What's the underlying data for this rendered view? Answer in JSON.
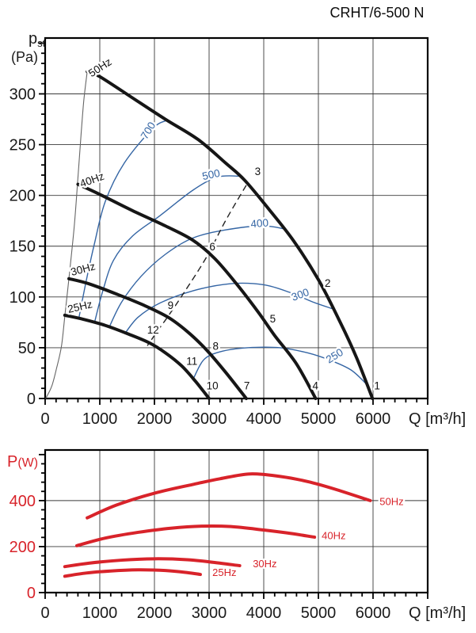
{
  "title": "CRHT/6-500 N",
  "colors": {
    "fan_curve": "#161616",
    "contour": "#3465a4",
    "power_curve": "#d8232a",
    "axis": "#000000",
    "grid": "#3a3a3a",
    "text": "#1a1a1a"
  },
  "chart_data": [
    {
      "id": "pressure",
      "type": "line",
      "title": "",
      "xlabel": "Q [m³/h]",
      "ylabel": {
        "main": "p",
        "sub": "st",
        "unit": "(Pa)"
      },
      "xlim": [
        0,
        7000
      ],
      "ylim": [
        0,
        355
      ],
      "xticks": [
        0,
        1000,
        2000,
        3000,
        4000,
        5000,
        6000
      ],
      "yticks": [
        0,
        50,
        100,
        150,
        200,
        250,
        300
      ],
      "x_minor_step": 200,
      "y_minor_step": 10,
      "x_major_step": 1000,
      "y_major_step": 50,
      "grid": true,
      "series": [
        {
          "name": "50Hz",
          "points": [
            [
              770,
              322
            ],
            [
              1000,
              317
            ],
            [
              1600,
              296
            ],
            [
              2200,
              275
            ],
            [
              2800,
              255
            ],
            [
              3300,
              232
            ],
            [
              3650,
              215
            ],
            [
              4100,
              186
            ],
            [
              4550,
              155
            ],
            [
              5000,
              117
            ],
            [
              5400,
              75
            ],
            [
              5700,
              40
            ],
            [
              5990,
              0
            ]
          ]
        },
        {
          "name": "40Hz",
          "points": [
            [
              600,
              211
            ],
            [
              1000,
              201
            ],
            [
              1600,
              185
            ],
            [
              2200,
              170
            ],
            [
              2700,
              156
            ],
            [
              3100,
              138
            ],
            [
              3500,
              113
            ],
            [
              3900,
              85
            ],
            [
              4200,
              62
            ],
            [
              4600,
              34
            ],
            [
              4950,
              0
            ]
          ]
        },
        {
          "name": "30Hz",
          "points": [
            [
              435,
              118
            ],
            [
              800,
              113
            ],
            [
              1300,
              103
            ],
            [
              1800,
              92
            ],
            [
              2250,
              80
            ],
            [
              2600,
              66
            ],
            [
              2950,
              48
            ],
            [
              3300,
              26
            ],
            [
              3680,
              0
            ]
          ]
        },
        {
          "name": "25Hz",
          "points": [
            [
              360,
              82
            ],
            [
              700,
              78
            ],
            [
              1100,
              72
            ],
            [
              1500,
              64
            ],
            [
              1900,
              55
            ],
            [
              2200,
              45
            ],
            [
              2500,
              32
            ],
            [
              2750,
              17
            ],
            [
              3000,
              0
            ]
          ]
        }
      ],
      "curve_labels": [
        {
          "text": "50Hz",
          "q": 1040,
          "p": 323,
          "rot": -33
        },
        {
          "text": "40Hz",
          "q": 880,
          "p": 212,
          "rot": -20
        },
        {
          "text": "30Hz",
          "q": 710,
          "p": 124,
          "rot": -15
        },
        {
          "text": "25Hz",
          "q": 652,
          "p": 87,
          "rot": -13
        }
      ],
      "contours": [
        {
          "label": "700",
          "points": [
            [
              620,
              80
            ],
            [
              760,
              118
            ],
            [
              900,
              152
            ],
            [
              1100,
              194
            ],
            [
              1450,
              232
            ],
            [
              1970,
              266
            ],
            [
              2230,
              274
            ]
          ],
          "label_q": 1940,
          "label_p": 262,
          "label_rot": -58
        },
        {
          "label": "500",
          "points": [
            [
              900,
              74
            ],
            [
              1050,
              105
            ],
            [
              1250,
              136
            ],
            [
              1600,
              160
            ],
            [
              2100,
              180
            ],
            [
              2700,
              205
            ],
            [
              3150,
              218
            ],
            [
              3560,
              219
            ]
          ],
          "label_q": 3050,
          "label_p": 217,
          "label_rot": -12
        },
        {
          "label": "400",
          "points": [
            [
              1170,
              70
            ],
            [
              1400,
              95
            ],
            [
              1750,
              120
            ],
            [
              2200,
              142
            ],
            [
              2700,
              158
            ],
            [
              3300,
              166
            ],
            [
              3960,
              170
            ],
            [
              4390,
              167
            ]
          ],
          "label_q": 3930,
          "label_p": 169,
          "label_rot": -5
        },
        {
          "label": "300",
          "points": [
            [
              1460,
              64
            ],
            [
              1700,
              80
            ],
            [
              2100,
              94
            ],
            [
              2700,
              106
            ],
            [
              3380,
              113
            ],
            [
              4000,
              112
            ],
            [
              4500,
              104
            ],
            [
              4900,
              95
            ],
            [
              5280,
              88
            ]
          ],
          "label_q": 4690,
          "label_p": 99,
          "label_rot": -20
        },
        {
          "label": "250",
          "points": [
            [
              2700,
              18
            ],
            [
              2900,
              38
            ],
            [
              3200,
              46
            ],
            [
              3700,
              50
            ],
            [
              4300,
              50
            ],
            [
              4800,
              45
            ],
            [
              5200,
              38
            ],
            [
              5600,
              28
            ],
            [
              5900,
              13
            ]
          ],
          "label_q": 5330,
          "label_p": 39,
          "label_rot": -32
        }
      ],
      "boundary_line": [
        [
          10,
          0
        ],
        [
          120,
          12
        ],
        [
          210,
          30
        ],
        [
          300,
          52
        ],
        [
          362,
          82
        ],
        [
          435,
          118
        ],
        [
          530,
          168
        ],
        [
          594,
          213
        ],
        [
          660,
          262
        ],
        [
          710,
          295
        ],
        [
          770,
          322
        ]
      ],
      "dashed_line": [
        [
          3680,
          210
        ],
        [
          3300,
          175
        ],
        [
          2950,
          139
        ],
        [
          2550,
          105
        ],
        [
          2250,
          81
        ],
        [
          2050,
          66
        ],
        [
          1870,
          52
        ]
      ],
      "point_labels": [
        {
          "n": "1",
          "q": 6075,
          "p": 9
        },
        {
          "n": "2",
          "q": 5170,
          "p": 110
        },
        {
          "n": "3",
          "q": 3890,
          "p": 220
        },
        {
          "n": "4",
          "q": 4945,
          "p": 9
        },
        {
          "n": "5",
          "q": 4165,
          "p": 75
        },
        {
          "n": "6",
          "q": 3060,
          "p": 146
        },
        {
          "n": "7",
          "q": 3690,
          "p": 9
        },
        {
          "n": "8",
          "q": 3120,
          "p": 48
        },
        {
          "n": "9",
          "q": 2295,
          "p": 88
        },
        {
          "n": "10",
          "q": 3060,
          "p": 9
        },
        {
          "n": "11",
          "q": 2685,
          "p": 33
        },
        {
          "n": "12",
          "q": 1975,
          "p": 64
        }
      ]
    },
    {
      "id": "power",
      "type": "line",
      "title": "",
      "xlabel": "Q [m³/h]",
      "ylabel": {
        "main": "P",
        "sub": "",
        "unit": "(W)"
      },
      "xlim": [
        0,
        7000
      ],
      "ylim": [
        0,
        620
      ],
      "xticks": [
        0,
        1000,
        2000,
        3000,
        4000,
        5000,
        6000
      ],
      "yticks": [
        0,
        200,
        400
      ],
      "x_minor_step": 200,
      "y_minor_step": 40,
      "x_major_step": 1000,
      "y_major_step": 200,
      "grid": true,
      "series": [
        {
          "name": "50Hz",
          "points": [
            [
              770,
              325
            ],
            [
              1300,
              380
            ],
            [
              2000,
              432
            ],
            [
              2700,
              470
            ],
            [
              3200,
              495
            ],
            [
              3750,
              516
            ],
            [
              4300,
              505
            ],
            [
              4800,
              483
            ],
            [
              5300,
              450
            ],
            [
              5950,
              400
            ]
          ],
          "label_q": 6120,
          "label_p": 380
        },
        {
          "name": "40Hz",
          "points": [
            [
              580,
              204
            ],
            [
              1100,
              237
            ],
            [
              1700,
              262
            ],
            [
              2300,
              280
            ],
            [
              2900,
              289
            ],
            [
              3400,
              287
            ],
            [
              4000,
              272
            ],
            [
              4500,
              257
            ],
            [
              4930,
              241
            ]
          ],
          "label_q": 5060,
          "label_p": 232
        },
        {
          "name": "30Hz",
          "points": [
            [
              360,
              113
            ],
            [
              800,
              128
            ],
            [
              1400,
              141
            ],
            [
              2000,
              147
            ],
            [
              2600,
              143
            ],
            [
              3100,
              131
            ],
            [
              3560,
              117
            ]
          ],
          "label_q": 3800,
          "label_p": 110
        },
        {
          "name": "25Hz",
          "points": [
            [
              360,
              71
            ],
            [
              750,
              85
            ],
            [
              1200,
              94
            ],
            [
              1700,
              99
            ],
            [
              2200,
              96
            ],
            [
              2600,
              87
            ],
            [
              2840,
              79
            ]
          ],
          "label_q": 3060,
          "label_p": 73
        }
      ]
    }
  ]
}
